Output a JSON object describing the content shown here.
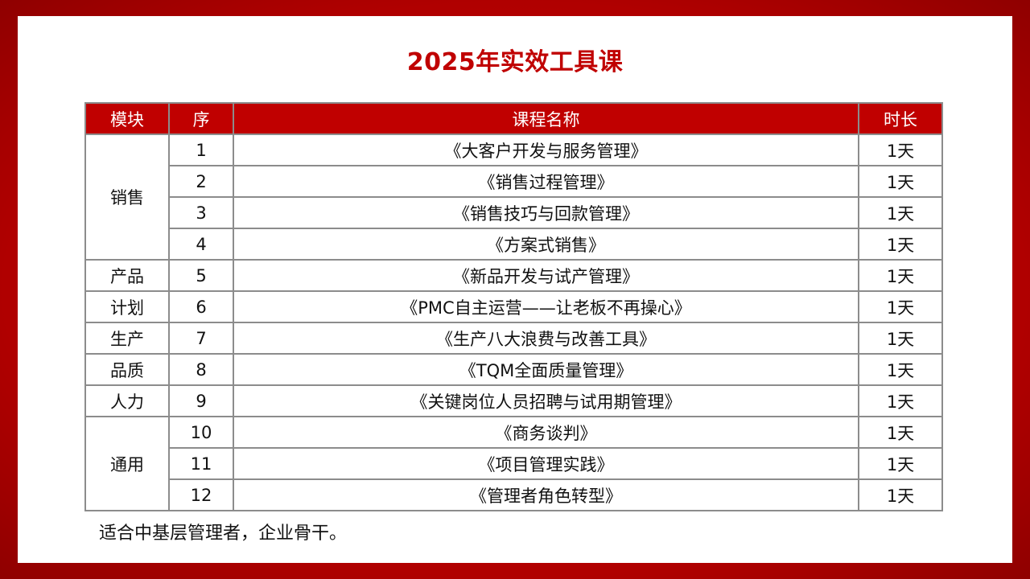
{
  "title": "2025年实效工具课",
  "table": {
    "headers": [
      "模块",
      "序",
      "课程名称",
      "时长"
    ],
    "groups": [
      {
        "module": "销售",
        "rows": [
          {
            "no": "1",
            "course": "《大客户开发与服务管理》",
            "duration": "1天"
          },
          {
            "no": "2",
            "course": "《销售过程管理》",
            "duration": "1天"
          },
          {
            "no": "3",
            "course": "《销售技巧与回款管理》",
            "duration": "1天"
          },
          {
            "no": "4",
            "course": "《方案式销售》",
            "duration": "1天"
          }
        ]
      },
      {
        "module": "产品",
        "rows": [
          {
            "no": "5",
            "course": "《新品开发与试产管理》",
            "duration": "1天"
          }
        ]
      },
      {
        "module": "计划",
        "rows": [
          {
            "no": "6",
            "course": "《PMC自主运营——让老板不再操心》",
            "duration": "1天"
          }
        ]
      },
      {
        "module": "生产",
        "rows": [
          {
            "no": "7",
            "course": "《生产八大浪费与改善工具》",
            "duration": "1天"
          }
        ]
      },
      {
        "module": "品质",
        "rows": [
          {
            "no": "8",
            "course": "《TQM全面质量管理》",
            "duration": "1天"
          }
        ]
      },
      {
        "module": "人力",
        "rows": [
          {
            "no": "9",
            "course": "《关键岗位人员招聘与试用期管理》",
            "duration": "1天"
          }
        ]
      },
      {
        "module": "通用",
        "rows": [
          {
            "no": "10",
            "course": "《商务谈判》",
            "duration": "1天"
          },
          {
            "no": "11",
            "course": "《项目管理实践》",
            "duration": "1天"
          },
          {
            "no": "12",
            "course": "《管理者角色转型》",
            "duration": "1天"
          }
        ]
      }
    ]
  },
  "note": "适合中基层管理者，企业骨干。",
  "colors": {
    "accent": "#c00000",
    "border": "#8c8c8c"
  }
}
